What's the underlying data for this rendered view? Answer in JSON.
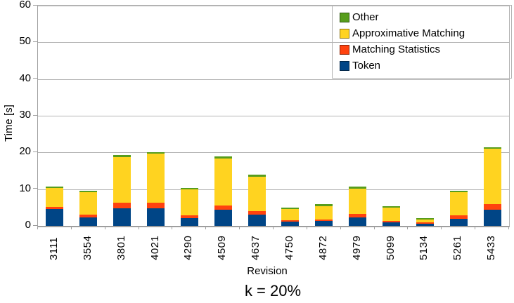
{
  "chart_data": {
    "type": "bar",
    "stacked": true,
    "subtitle": "k = 20%",
    "xlabel": "Revision",
    "ylabel": "Time [s]",
    "ylim": [
      0,
      60
    ],
    "yticks": [
      0,
      10,
      20,
      30,
      40,
      50,
      60
    ],
    "grid": "horizontal",
    "legend_position": "top-right-inside",
    "categories": [
      "3111",
      "3554",
      "3801",
      "4021",
      "4290",
      "4509",
      "4637",
      "4750",
      "4872",
      "4979",
      "5099",
      "5134",
      "5261",
      "5433"
    ],
    "series": [
      {
        "name": "Token",
        "color": "#004586",
        "values": [
          4.6,
          2.3,
          4.7,
          4.8,
          2.1,
          4.4,
          3.1,
          1.1,
          1.3,
          2.3,
          0.9,
          0.6,
          2.0,
          4.4
        ]
      },
      {
        "name": "Matching Statistics",
        "color": "#ff420e",
        "values": [
          0.5,
          0.7,
          1.6,
          1.5,
          0.7,
          1.2,
          0.9,
          0.4,
          0.5,
          0.9,
          0.4,
          0.3,
          0.8,
          1.5
        ]
      },
      {
        "name": "Approximative Matching",
        "color": "#ffd320",
        "values": [
          5.3,
          6.2,
          12.5,
          13.3,
          7.1,
          12.8,
          9.4,
          3.0,
          3.6,
          7.0,
          3.7,
          0.8,
          6.3,
          15.1
        ]
      },
      {
        "name": "Other",
        "color": "#579d1c",
        "values": [
          0.3,
          0.3,
          0.5,
          0.5,
          0.4,
          0.5,
          0.5,
          0.4,
          0.5,
          0.5,
          0.4,
          0.5,
          0.5,
          0.5
        ]
      }
    ],
    "legend_order": [
      "Other",
      "Approximative Matching",
      "Matching Statistics",
      "Token"
    ],
    "style": {
      "grid_color": "#b3b3b3",
      "axis_color": "#9e9e9e",
      "text_color": "#000000",
      "background": "#ffffff"
    }
  }
}
